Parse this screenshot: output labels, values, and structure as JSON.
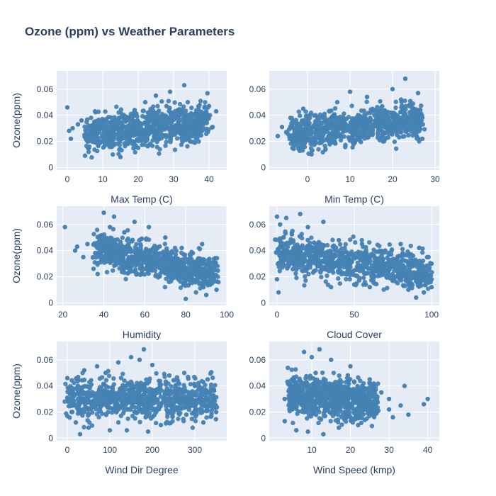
{
  "chart_data": {
    "type": "scatter",
    "title": "Ozone (ppm) vs Weather Parameters",
    "marker_color": "#4682b4",
    "plot_background": "#e5ecf6",
    "grid": true,
    "subplots": [
      {
        "xlabel": "Max Temp (C)",
        "ylabel": "Ozone(ppm)",
        "xlim": [
          -3,
          45
        ],
        "ylim": [
          -0.002,
          0.074
        ],
        "xticks": [
          0,
          10,
          20,
          30,
          40
        ],
        "xtick_labels": [
          "0",
          "10",
          "20",
          "30",
          "40"
        ],
        "yticks": [
          0,
          0.02,
          0.04,
          0.06
        ],
        "ytick_labels": [
          "0",
          "0.02",
          "0.04",
          "0.06"
        ],
        "points": [
          [
            0,
            0.046
          ],
          [
            0.5,
            0.028
          ],
          [
            1,
            0.022
          ],
          [
            1.5,
            0.03
          ],
          [
            3,
            0.033
          ],
          [
            4,
            0.036
          ],
          [
            5,
            0.009
          ],
          [
            6,
            0.02
          ],
          [
            8,
            0.025
          ],
          [
            10,
            0.034
          ],
          [
            12,
            0.018
          ],
          [
            13,
            0.027
          ],
          [
            14,
            0.036
          ],
          [
            15,
            0.008
          ],
          [
            16,
            0.04
          ],
          [
            17,
            0.022
          ],
          [
            18,
            0.03
          ],
          [
            19,
            0.044
          ],
          [
            20,
            0.015
          ],
          [
            21,
            0.033
          ],
          [
            22,
            0.05
          ],
          [
            23,
            0.027
          ],
          [
            24,
            0.04
          ],
          [
            25,
            0.055
          ],
          [
            26,
            0.022
          ],
          [
            27,
            0.036
          ],
          [
            28,
            0.047
          ],
          [
            29,
            0.058
          ],
          [
            30,
            0.025
          ],
          [
            31,
            0.04
          ],
          [
            32,
            0.031
          ],
          [
            33,
            0.063
          ],
          [
            34,
            0.05
          ],
          [
            35,
            0.035
          ],
          [
            36,
            0.019
          ],
          [
            37,
            0.044
          ],
          [
            38,
            0.028
          ],
          [
            40,
            0.047
          ],
          [
            41,
            0.031
          ],
          [
            42,
            0.043
          ]
        ],
        "trend": {
          "x": [
            5,
            40
          ],
          "y_start": 0.024,
          "y_end": 0.036,
          "y_spread": 0.024
        }
      },
      {
        "xlabel": "Min Temp (C)",
        "ylabel": "",
        "xlim": [
          -9,
          31
        ],
        "ylim": [
          -0.002,
          0.074
        ],
        "xticks": [
          0,
          10,
          20,
          30
        ],
        "xtick_labels": [
          "0",
          "10",
          "20",
          "30"
        ],
        "yticks": [
          0,
          0.02,
          0.04,
          0.06
        ],
        "ytick_labels": [
          "0",
          "0.02",
          "0.04",
          "0.06"
        ],
        "points": [
          [
            -7,
            0.024
          ],
          [
            -6,
            0.031
          ],
          [
            -5,
            0.027
          ],
          [
            -4,
            0.038
          ],
          [
            -3,
            0.02
          ],
          [
            -2,
            0.032
          ],
          [
            -1,
            0.045
          ],
          [
            0,
            0.028
          ],
          [
            1,
            0.013
          ],
          [
            2,
            0.035
          ],
          [
            4,
            0.041
          ],
          [
            5,
            0.02
          ],
          [
            7,
            0.05
          ],
          [
            9,
            0.03
          ],
          [
            10,
            0.058
          ],
          [
            12,
            0.025
          ],
          [
            14,
            0.054
          ],
          [
            16,
            0.044
          ],
          [
            18,
            0.02
          ],
          [
            20,
            0.06
          ],
          [
            22,
            0.052
          ],
          [
            23,
            0.068
          ],
          [
            24,
            0.047
          ],
          [
            25,
            0.028
          ],
          [
            26,
            0.057
          ],
          [
            27,
            0.038
          ],
          [
            27,
            0.022
          ]
        ],
        "trend": {
          "x": [
            -4,
            27
          ],
          "y_start": 0.026,
          "y_end": 0.037,
          "y_spread": 0.022
        }
      },
      {
        "xlabel": "Humidity",
        "ylabel": "Ozone(ppm)",
        "xlim": [
          17,
          100
        ],
        "ylim": [
          -0.002,
          0.074
        ],
        "xticks": [
          20,
          40,
          60,
          80,
          100
        ],
        "xtick_labels": [
          "20",
          "40",
          "60",
          "80",
          "100"
        ],
        "yticks": [
          0,
          0.02,
          0.04,
          0.06
        ],
        "ytick_labels": [
          "0",
          "0.02",
          "0.04",
          "0.06"
        ],
        "points": [
          [
            21,
            0.058
          ],
          [
            26,
            0.04
          ],
          [
            27,
            0.043
          ],
          [
            30,
            0.035
          ],
          [
            32,
            0.045
          ],
          [
            35,
            0.026
          ],
          [
            37,
            0.022
          ],
          [
            39,
            0.036
          ],
          [
            40,
            0.069
          ],
          [
            41,
            0.048
          ],
          [
            43,
            0.058
          ],
          [
            45,
            0.066
          ],
          [
            48,
            0.03
          ],
          [
            50,
            0.054
          ],
          [
            55,
            0.062
          ],
          [
            58,
            0.042
          ],
          [
            62,
            0.058
          ],
          [
            65,
            0.036
          ],
          [
            70,
            0.05
          ],
          [
            72,
            0.016
          ],
          [
            75,
            0.02
          ],
          [
            78,
            0.042
          ],
          [
            80,
            0.003
          ],
          [
            82,
            0.037
          ],
          [
            85,
            0.008
          ],
          [
            88,
            0.045
          ],
          [
            90,
            0.006
          ],
          [
            92,
            0.02
          ],
          [
            94,
            0.028
          ],
          [
            95,
            0.01
          ]
        ],
        "trend": {
          "x": [
            35,
            95
          ],
          "y_start": 0.042,
          "y_end": 0.022,
          "y_spread": 0.022
        }
      },
      {
        "xlabel": "Cloud Cover",
        "ylabel": "",
        "xlim": [
          -5,
          105
        ],
        "ylim": [
          -0.002,
          0.074
        ],
        "xticks": [
          0,
          50,
          100
        ],
        "xtick_labels": [
          "0",
          "50",
          "100"
        ],
        "yticks": [
          0,
          0.02,
          0.04,
          0.06
        ],
        "ytick_labels": [
          "0",
          "0.02",
          "0.04",
          "0.06"
        ],
        "points": [
          [
            0,
            0.066
          ],
          [
            0,
            0.018
          ],
          [
            1,
            0.008
          ],
          [
            2,
            0.06
          ],
          [
            4,
            0.05
          ],
          [
            6,
            0.065
          ],
          [
            10,
            0.055
          ],
          [
            15,
            0.068
          ],
          [
            20,
            0.058
          ],
          [
            30,
            0.062
          ],
          [
            35,
            0.012
          ],
          [
            40,
            0.048
          ],
          [
            50,
            0.014
          ],
          [
            55,
            0.045
          ],
          [
            60,
            0.012
          ],
          [
            70,
            0.04
          ],
          [
            75,
            0.018
          ],
          [
            80,
            0.045
          ],
          [
            85,
            0.01
          ],
          [
            88,
            0.036
          ],
          [
            90,
            0.004
          ],
          [
            92,
            0.042
          ],
          [
            95,
            0.008
          ],
          [
            98,
            0.035
          ],
          [
            100,
            0.018
          ],
          [
            100,
            0.03
          ],
          [
            100,
            0.012
          ]
        ],
        "trend": {
          "x": [
            0,
            100
          ],
          "y_start": 0.038,
          "y_end": 0.023,
          "y_spread": 0.024
        }
      },
      {
        "xlabel": "Wind Dir Degree",
        "ylabel": "Ozone(ppm)",
        "xlim": [
          -25,
          375
        ],
        "ylim": [
          -0.002,
          0.074
        ],
        "xticks": [
          0,
          100,
          200,
          300
        ],
        "xtick_labels": [
          "0",
          "100",
          "200",
          "300"
        ],
        "yticks": [
          0,
          0.02,
          0.04,
          0.06
        ],
        "ytick_labels": [
          "0",
          "0.02",
          "0.04",
          "0.06"
        ],
        "points": [
          [
            0,
            0.046
          ],
          [
            5,
            0.03
          ],
          [
            10,
            0.02
          ],
          [
            20,
            0.012
          ],
          [
            25,
            0.04
          ],
          [
            30,
            0.003
          ],
          [
            40,
            0.052
          ],
          [
            50,
            0.008
          ],
          [
            70,
            0.055
          ],
          [
            90,
            0.05
          ],
          [
            100,
            0.006
          ],
          [
            120,
            0.058
          ],
          [
            140,
            0.006
          ],
          [
            150,
            0.062
          ],
          [
            170,
            0.06
          ],
          [
            180,
            0.068
          ],
          [
            190,
            0.005
          ],
          [
            200,
            0.056
          ],
          [
            220,
            0.01
          ],
          [
            240,
            0.048
          ],
          [
            260,
            0.044
          ],
          [
            280,
            0.018
          ],
          [
            300,
            0.04
          ],
          [
            320,
            0.012
          ],
          [
            330,
            0.045
          ],
          [
            340,
            0.024
          ],
          [
            350,
            0.02
          ]
        ],
        "trend": {
          "x": [
            0,
            350
          ],
          "y_start": 0.031,
          "y_end": 0.03,
          "y_spread": 0.026
        }
      },
      {
        "xlabel": "Wind Speed (kmp)",
        "ylabel": "",
        "xlim": [
          -1,
          43
        ],
        "ylim": [
          -0.002,
          0.074
        ],
        "xticks": [
          10,
          20,
          30,
          40
        ],
        "xtick_labels": [
          "10",
          "20",
          "30",
          "40"
        ],
        "yticks": [
          0,
          0.02,
          0.04,
          0.06
        ],
        "ytick_labels": [
          "0",
          "0.02",
          "0.04",
          "0.06"
        ],
        "points": [
          [
            3,
            0.03
          ],
          [
            3,
            0.013
          ],
          [
            4,
            0.036
          ],
          [
            5,
            0.022
          ],
          [
            6,
            0.006
          ],
          [
            7,
            0.04
          ],
          [
            8,
            0.066
          ],
          [
            9,
            0.005
          ],
          [
            10,
            0.062
          ],
          [
            11,
            0.05
          ],
          [
            12,
            0.068
          ],
          [
            13,
            0.003
          ],
          [
            15,
            0.06
          ],
          [
            17,
            0.008
          ],
          [
            20,
            0.055
          ],
          [
            22,
            0.01
          ],
          [
            25,
            0.045
          ],
          [
            26,
            0.018
          ],
          [
            28,
            0.035
          ],
          [
            30,
            0.03
          ],
          [
            30,
            0.022
          ],
          [
            31,
            0.016
          ],
          [
            33,
            0.025
          ],
          [
            34,
            0.04
          ],
          [
            35,
            0.018
          ],
          [
            39,
            0.026
          ],
          [
            40,
            0.03
          ]
        ],
        "trend": {
          "x": [
            4,
            27
          ],
          "y_start": 0.033,
          "y_end": 0.028,
          "y_spread": 0.026
        }
      }
    ]
  }
}
